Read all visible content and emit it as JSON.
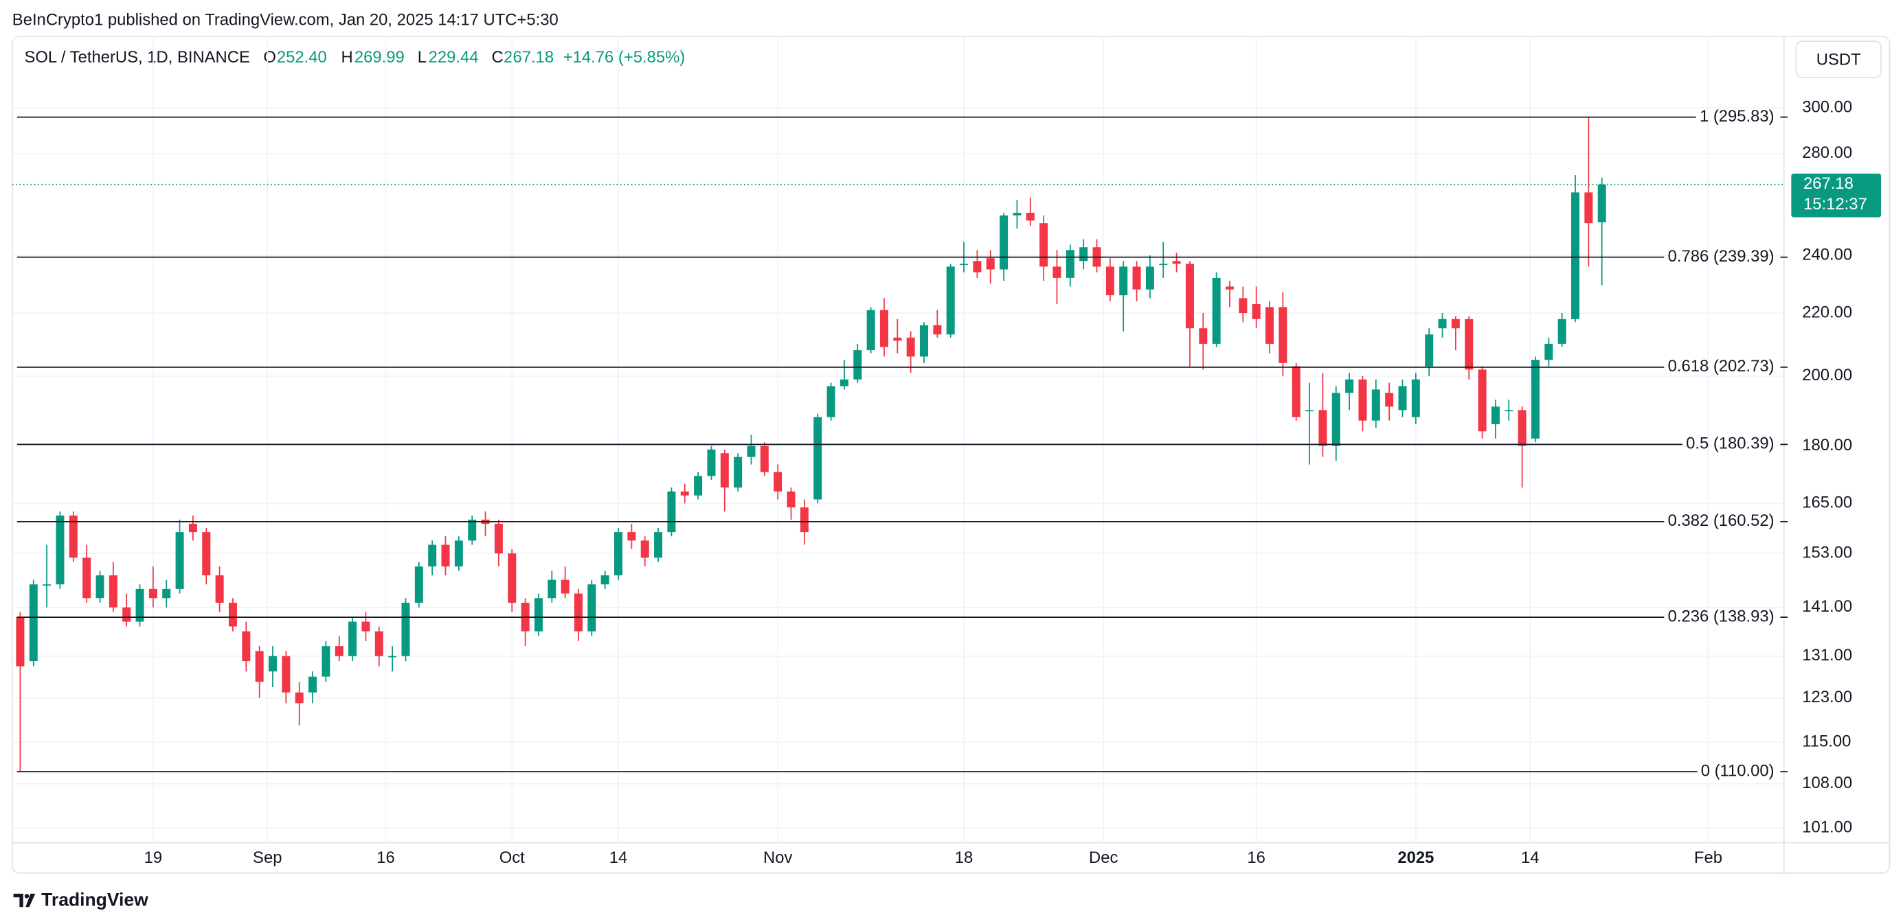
{
  "header": {
    "publisher": "BeInCrypto1 published on TradingView.com, Jan 20, 2025 14:17 UTC+5:30",
    "symbol": "SOL / TetherUS, 1D, BINANCE",
    "o_label": "O",
    "open": "252.40",
    "h_label": "H",
    "high": "269.99",
    "l_label": "L",
    "low": "229.44",
    "c_label": "C",
    "close": "267.18",
    "change": "+14.76 (+5.85%)",
    "currency": "USDT"
  },
  "price_label": {
    "price": "267.18",
    "countdown": "15:12:37"
  },
  "footer": {
    "brand": "TradingView"
  },
  "chart_data": {
    "type": "candlestick",
    "log_scale": true,
    "grid": true,
    "up_color": "#089981",
    "down_color": "#f23645",
    "ylim": [
      98.8,
      333
    ],
    "xlim": [
      -0.6,
      132.7
    ],
    "yticks": [
      {
        "value": 101,
        "label": "101.00"
      },
      {
        "value": 108,
        "label": "108.00"
      },
      {
        "value": 115,
        "label": "115.00"
      },
      {
        "value": 123,
        "label": "123.00"
      },
      {
        "value": 131,
        "label": "131.00"
      },
      {
        "value": 141,
        "label": "141.00"
      },
      {
        "value": 153,
        "label": "153.00"
      },
      {
        "value": 165,
        "label": "165.00"
      },
      {
        "value": 180,
        "label": "180.00"
      },
      {
        "value": 200,
        "label": "200.00"
      },
      {
        "value": 220,
        "label": "220.00"
      },
      {
        "value": 240,
        "label": "240.00"
      },
      {
        "value": 280,
        "label": "280.00"
      },
      {
        "value": 300,
        "label": "300.00"
      }
    ],
    "xticks": [
      {
        "value": 10,
        "label": "19"
      },
      {
        "value": 18.6,
        "label": "Sep"
      },
      {
        "value": 27.5,
        "label": "16"
      },
      {
        "value": 37,
        "label": "Oct"
      },
      {
        "value": 45,
        "label": "14"
      },
      {
        "value": 57,
        "label": "Nov"
      },
      {
        "value": 71,
        "label": "18"
      },
      {
        "value": 81.5,
        "label": "Dec"
      },
      {
        "value": 93,
        "label": "16"
      },
      {
        "value": 105,
        "label": "2025"
      },
      {
        "value": 113.6,
        "label": "14"
      },
      {
        "value": 127,
        "label": "Feb"
      }
    ],
    "levels": [
      {
        "value": 295.83,
        "label": "1 (295.83)"
      },
      {
        "value": 239.39,
        "label": "0.786 (239.39)"
      },
      {
        "value": 202.73,
        "label": "0.618 (202.73)"
      },
      {
        "value": 180.39,
        "label": "0.5 (180.39)"
      },
      {
        "value": 160.52,
        "label": "0.382 (160.52)"
      },
      {
        "value": 138.93,
        "label": "0.236 (138.93)"
      },
      {
        "value": 110.0,
        "label": "0 (110.00)"
      }
    ],
    "ohlc": [
      [
        139,
        140,
        110,
        129
      ],
      [
        130,
        147,
        129,
        146
      ],
      [
        146,
        155,
        141,
        146
      ],
      [
        146,
        163,
        145,
        162
      ],
      [
        162,
        163,
        151,
        152
      ],
      [
        152,
        155,
        142,
        143
      ],
      [
        143,
        149,
        142,
        148
      ],
      [
        148,
        151,
        140,
        141
      ],
      [
        141,
        144,
        137,
        138
      ],
      [
        138,
        146,
        137,
        145
      ],
      [
        145,
        150,
        141,
        143
      ],
      [
        143,
        147,
        141,
        145
      ],
      [
        145,
        161,
        144,
        158
      ],
      [
        160,
        162,
        156,
        158
      ],
      [
        158,
        159,
        146,
        148
      ],
      [
        148,
        150,
        140,
        142
      ],
      [
        142,
        143,
        136,
        137
      ],
      [
        136,
        138,
        128,
        130
      ],
      [
        132,
        133,
        123,
        126
      ],
      [
        128,
        133,
        125,
        131
      ],
      [
        131,
        132,
        122,
        124
      ],
      [
        124,
        126,
        118,
        122
      ],
      [
        124,
        128,
        122,
        127
      ],
      [
        127,
        134,
        126,
        133
      ],
      [
        133,
        135,
        130,
        131
      ],
      [
        131,
        139,
        130,
        138
      ],
      [
        138,
        140,
        134,
        136
      ],
      [
        136,
        137,
        129,
        131
      ],
      [
        131,
        133,
        128,
        131
      ],
      [
        131,
        143,
        130,
        142
      ],
      [
        142,
        151,
        141,
        150
      ],
      [
        150,
        156,
        148,
        155
      ],
      [
        155,
        157,
        148,
        150
      ],
      [
        150,
        157,
        149,
        156
      ],
      [
        156,
        162,
        155,
        161
      ],
      [
        161,
        163,
        157,
        160
      ],
      [
        160,
        161,
        150,
        153
      ],
      [
        153,
        154,
        140,
        142
      ],
      [
        142,
        143,
        133,
        136
      ],
      [
        136,
        144,
        135,
        143
      ],
      [
        143,
        149,
        142,
        147
      ],
      [
        147,
        150,
        143,
        144
      ],
      [
        144,
        145,
        134,
        136
      ],
      [
        136,
        147,
        135,
        146
      ],
      [
        146,
        149,
        145,
        148
      ],
      [
        148,
        159,
        147,
        158
      ],
      [
        158,
        160,
        154,
        156
      ],
      [
        156,
        157,
        150,
        152
      ],
      [
        152,
        159,
        151,
        158
      ],
      [
        158,
        169,
        157,
        168
      ],
      [
        168,
        170,
        165,
        167
      ],
      [
        167,
        173,
        166,
        172
      ],
      [
        172,
        180,
        171,
        179
      ],
      [
        178,
        179,
        163,
        169
      ],
      [
        169,
        178,
        168,
        177
      ],
      [
        177,
        183,
        175,
        180
      ],
      [
        180,
        181,
        172,
        173
      ],
      [
        173,
        175,
        166,
        168
      ],
      [
        168,
        169,
        161,
        164
      ],
      [
        164,
        166,
        155,
        158
      ],
      [
        166,
        189,
        165,
        188
      ],
      [
        188,
        198,
        187,
        197
      ],
      [
        197,
        205,
        196,
        199
      ],
      [
        199,
        210,
        198,
        208
      ],
      [
        208,
        222,
        207,
        221
      ],
      [
        221,
        225,
        206,
        209
      ],
      [
        212,
        218,
        207,
        211
      ],
      [
        212,
        214,
        201,
        206
      ],
      [
        206,
        217,
        204,
        216
      ],
      [
        216,
        221,
        212,
        213
      ],
      [
        213,
        237,
        212,
        236
      ],
      [
        237,
        245,
        234,
        237
      ],
      [
        238,
        242,
        232,
        234
      ],
      [
        239,
        242,
        230,
        235
      ],
      [
        235,
        256,
        231,
        255
      ],
      [
        255,
        261,
        250,
        256
      ],
      [
        256,
        262,
        251,
        253
      ],
      [
        252,
        255,
        231,
        236
      ],
      [
        236,
        242,
        223,
        232
      ],
      [
        232,
        244,
        229,
        242
      ],
      [
        238,
        246,
        235,
        243
      ],
      [
        243,
        246,
        234,
        236
      ],
      [
        236,
        239,
        224,
        226
      ],
      [
        226,
        238,
        214,
        236
      ],
      [
        236,
        238,
        224,
        228
      ],
      [
        228,
        240,
        225,
        236
      ],
      [
        237,
        245,
        232,
        237
      ],
      [
        238,
        241,
        234,
        237
      ],
      [
        237,
        238,
        203,
        215
      ],
      [
        215,
        220,
        202,
        210
      ],
      [
        210,
        234,
        209,
        232
      ],
      [
        229,
        231,
        222,
        228
      ],
      [
        225,
        229,
        217,
        220
      ],
      [
        223,
        229,
        215,
        218
      ],
      [
        222,
        224,
        207,
        210
      ],
      [
        222,
        227,
        200,
        204
      ],
      [
        203,
        204,
        187,
        188
      ],
      [
        190,
        198,
        175,
        190
      ],
      [
        190,
        201,
        177,
        180
      ],
      [
        180,
        197,
        176,
        195
      ],
      [
        195,
        201,
        190,
        199
      ],
      [
        199,
        200,
        184,
        187
      ],
      [
        187,
        199,
        185,
        196
      ],
      [
        195,
        198,
        187,
        191
      ],
      [
        190,
        199,
        188,
        197
      ],
      [
        188,
        201,
        186,
        199
      ],
      [
        203,
        215,
        200,
        213
      ],
      [
        215,
        220,
        212,
        218
      ],
      [
        218,
        219,
        208,
        215
      ],
      [
        218,
        219,
        199,
        202
      ],
      [
        202,
        203,
        182,
        184
      ],
      [
        186,
        193,
        182,
        191
      ],
      [
        190,
        193,
        187,
        190
      ],
      [
        190,
        191,
        169,
        180
      ],
      [
        182,
        206,
        181,
        205
      ],
      [
        205,
        212,
        203,
        210
      ],
      [
        210,
        220,
        209,
        218
      ],
      [
        218,
        271,
        217,
        264
      ],
      [
        264,
        295.83,
        236,
        252
      ],
      [
        252.4,
        269.99,
        229.44,
        267.18
      ]
    ]
  }
}
